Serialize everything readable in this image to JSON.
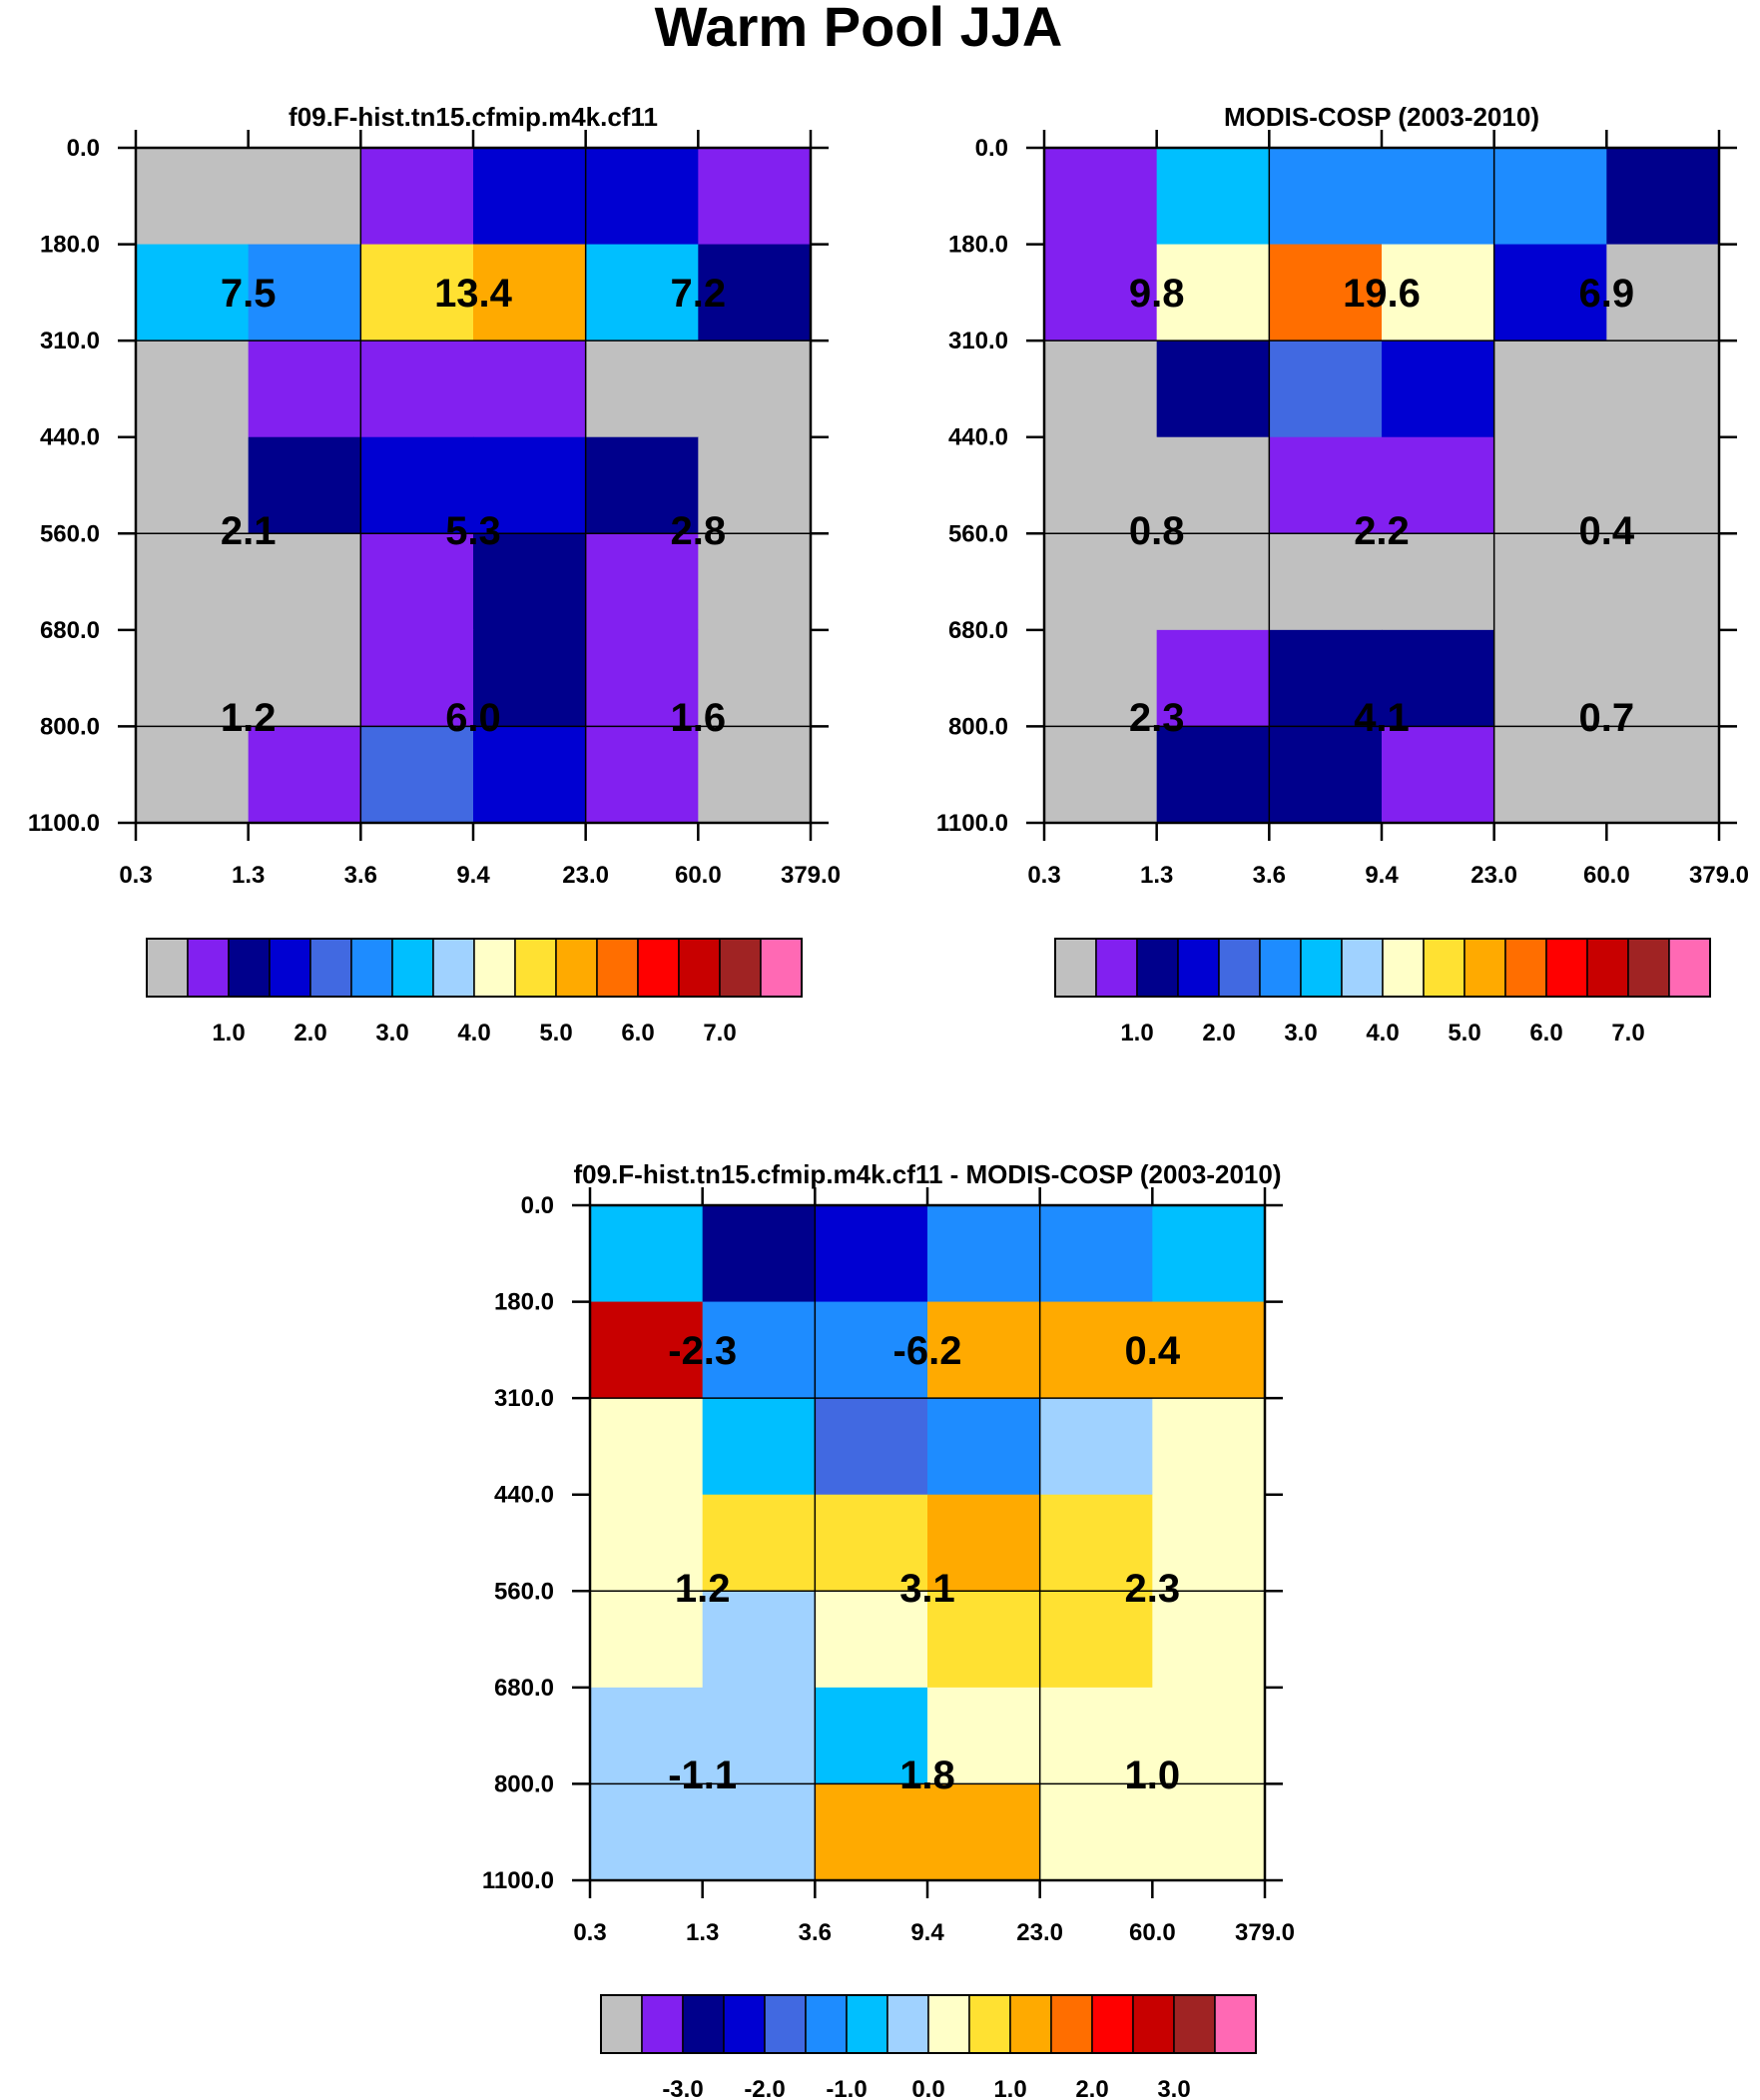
{
  "title": "Warm Pool JJA",
  "chart_data": [
    {
      "type": "heatmap",
      "title": "f09.F-hist.tn15.cfmip.m4k.cf11",
      "x_ticks": [
        "0.3",
        "1.3",
        "3.6",
        "9.4",
        "23.0",
        "60.0",
        "379.0"
      ],
      "y_ticks": [
        "0.0",
        "180.0",
        "310.0",
        "440.0",
        "560.0",
        "680.0",
        "800.0",
        "1100.0"
      ],
      "cells": [
        [
          0,
          0,
          1,
          3,
          3,
          1
        ],
        [
          6,
          5,
          9,
          10,
          6,
          2
        ],
        [
          0,
          1,
          1,
          1,
          0,
          0
        ],
        [
          0,
          2,
          3,
          3,
          2,
          0
        ],
        [
          0,
          0,
          1,
          2,
          1,
          0
        ],
        [
          0,
          0,
          1,
          2,
          1,
          0
        ],
        [
          0,
          1,
          4,
          3,
          1,
          0
        ]
      ],
      "summary_values": [
        [
          "7.5",
          "13.4",
          "7.2"
        ],
        [
          "2.1",
          "5.3",
          "2.8"
        ],
        [
          "1.2",
          "6.0",
          "1.6"
        ]
      ],
      "colorbar_labels": [
        "1.0",
        "2.0",
        "3.0",
        "4.0",
        "5.0",
        "6.0",
        "7.0"
      ]
    },
    {
      "type": "heatmap",
      "title": "MODIS-COSP (2003-2010)",
      "x_ticks": [
        "0.3",
        "1.3",
        "3.6",
        "9.4",
        "23.0",
        "60.0",
        "379.0"
      ],
      "y_ticks": [
        "0.0",
        "180.0",
        "310.0",
        "440.0",
        "560.0",
        "680.0",
        "800.0",
        "1100.0"
      ],
      "cells": [
        [
          1,
          6,
          5,
          5,
          5,
          2
        ],
        [
          1,
          8,
          11,
          8,
          3,
          0
        ],
        [
          0,
          2,
          4,
          3,
          0,
          0
        ],
        [
          0,
          0,
          1,
          1,
          0,
          0
        ],
        [
          0,
          0,
          0,
          0,
          0,
          0
        ],
        [
          0,
          1,
          2,
          2,
          0,
          0
        ],
        [
          0,
          2,
          2,
          1,
          0,
          0
        ]
      ],
      "summary_values": [
        [
          "9.8",
          "19.6",
          "6.9"
        ],
        [
          "0.8",
          "2.2",
          "0.4"
        ],
        [
          "2.3",
          "4.1",
          "0.7"
        ]
      ],
      "colorbar_labels": [
        "1.0",
        "2.0",
        "3.0",
        "4.0",
        "5.0",
        "6.0",
        "7.0"
      ]
    },
    {
      "type": "heatmap",
      "title": "f09.F-hist.tn15.cfmip.m4k.cf11 - MODIS-COSP (2003-2010)",
      "x_ticks": [
        "0.3",
        "1.3",
        "3.6",
        "9.4",
        "23.0",
        "60.0",
        "379.0"
      ],
      "y_ticks": [
        "0.0",
        "180.0",
        "310.0",
        "440.0",
        "560.0",
        "680.0",
        "800.0",
        "1100.0"
      ],
      "cells": [
        [
          6,
          2,
          3,
          5,
          5,
          6
        ],
        [
          13,
          5,
          5,
          10,
          10,
          10
        ],
        [
          8,
          6,
          4,
          5,
          7,
          8
        ],
        [
          8,
          9,
          9,
          10,
          9,
          8
        ],
        [
          8,
          7,
          8,
          9,
          9,
          8
        ],
        [
          7,
          7,
          6,
          8,
          8,
          8
        ],
        [
          7,
          7,
          10,
          10,
          8,
          8
        ]
      ],
      "summary_values": [
        [
          "-2.3",
          "-6.2",
          "0.4"
        ],
        [
          "1.2",
          "3.1",
          "2.3"
        ],
        [
          "-1.1",
          "1.8",
          "1.0"
        ]
      ],
      "colorbar_labels": [
        "-3.0",
        "-2.0",
        "-1.0",
        "0.0",
        "1.0",
        "2.0",
        "3.0"
      ]
    }
  ],
  "palette": [
    "#c0c0c0",
    "#8220f0",
    "#00008c",
    "#0000d2",
    "#4169e1",
    "#1e8cff",
    "#00bfff",
    "#a0d2ff",
    "#ffffc8",
    "#ffe132",
    "#ffaa00",
    "#ff6e00",
    "#ff0000",
    "#c80000",
    "#a02323",
    "#ff69b4"
  ]
}
